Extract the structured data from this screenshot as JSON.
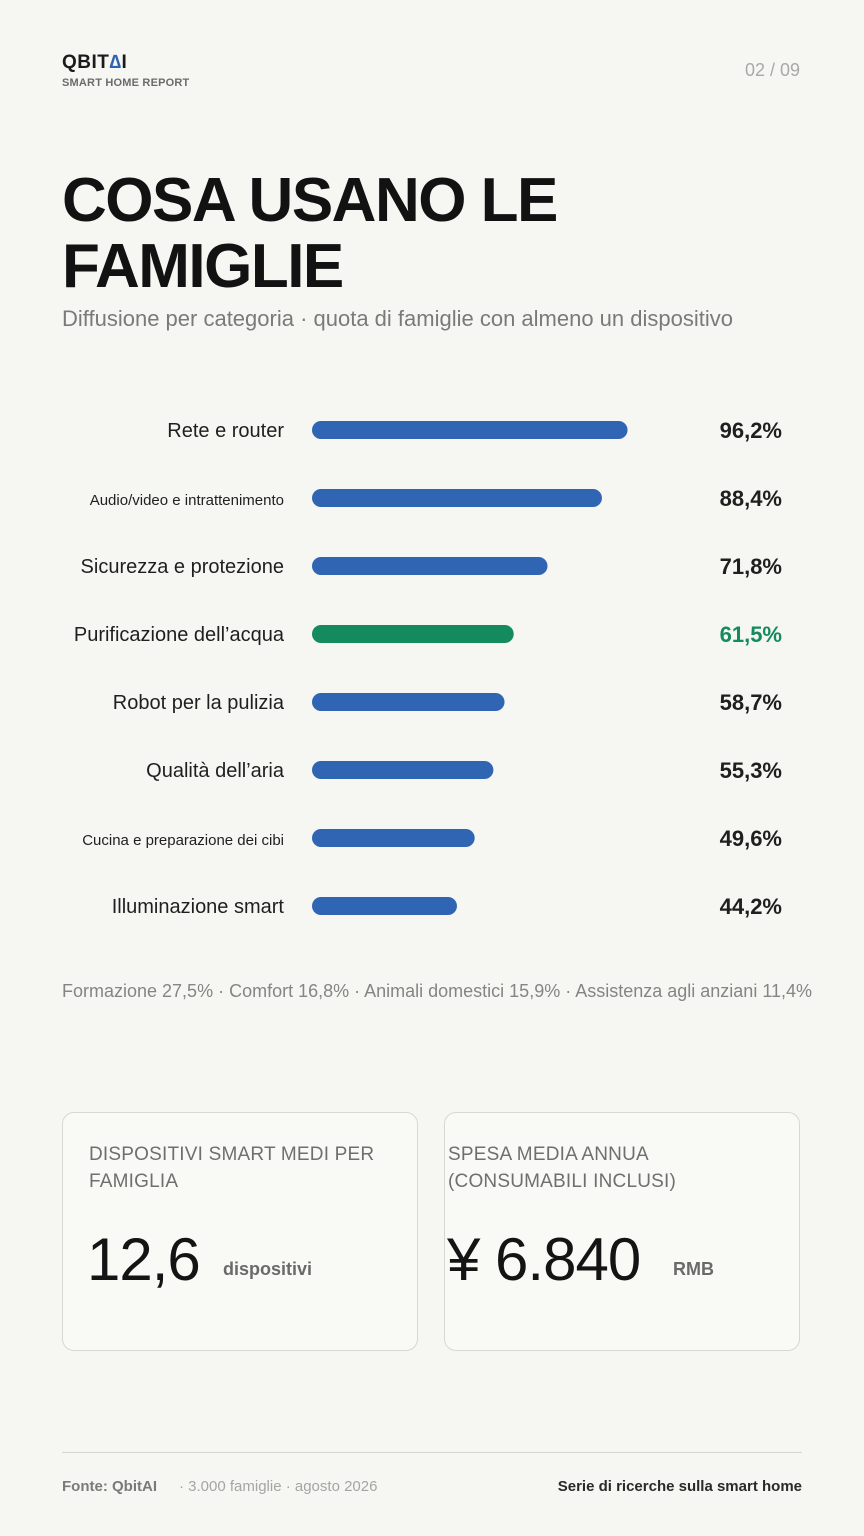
{
  "brand": {
    "logo_prefix": "QBIT",
    "logo_mark": "∆",
    "logo_suffix": "I",
    "subtitle": "SMART HOME REPORT"
  },
  "page": "02 / 09",
  "title": "COSA USANO LE FAMIGLIE",
  "subtitle": "Diffusione per categoria · quota di famiglie con almeno un dispositivo",
  "chart_data": {
    "type": "bar",
    "orientation": "horizontal",
    "title": "",
    "xlabel": "",
    "ylabel": "",
    "xlim": [
      0,
      100
    ],
    "grid": false,
    "legend": "none",
    "unit": "%",
    "categories": [
      "Rete e router",
      "Audio/video e intrattenimento",
      "Sicurezza e protezione",
      "Purificazione dell’acqua",
      "Robot per la pulizia",
      "Qualità dell’aria",
      "Cucina e preparazione dei cibi",
      "Illuminazione smart"
    ],
    "values": [
      96.2,
      88.4,
      71.8,
      61.5,
      58.7,
      55.3,
      49.6,
      44.2
    ],
    "value_labels": [
      "96,2%",
      "88,4%",
      "71,8%",
      "61,5%",
      "58,7%",
      "55,3%",
      "49,6%",
      "44,2%"
    ],
    "highlight_index": 3,
    "colors": {
      "default": "#2f65b3",
      "highlight": "#148a5f"
    }
  },
  "others_note": "Formazione 27,5% · Comfort 16,8% · Animali domestici 15,9% · Assistenza agli anziani 11,4%",
  "cards": [
    {
      "label": "Dispositivi smart medi per famiglia",
      "value": "12,6",
      "unit": "dispositivi"
    },
    {
      "label": "Spesa media annua (consumabili inclusi)",
      "value": "¥ 6.840",
      "unit": "RMB"
    }
  ],
  "footer": {
    "source": "Fonte: QbitAI",
    "meta": "· 3.000 famiglie · agosto 2026",
    "series": "Serie di ricerche sulla smart home"
  }
}
